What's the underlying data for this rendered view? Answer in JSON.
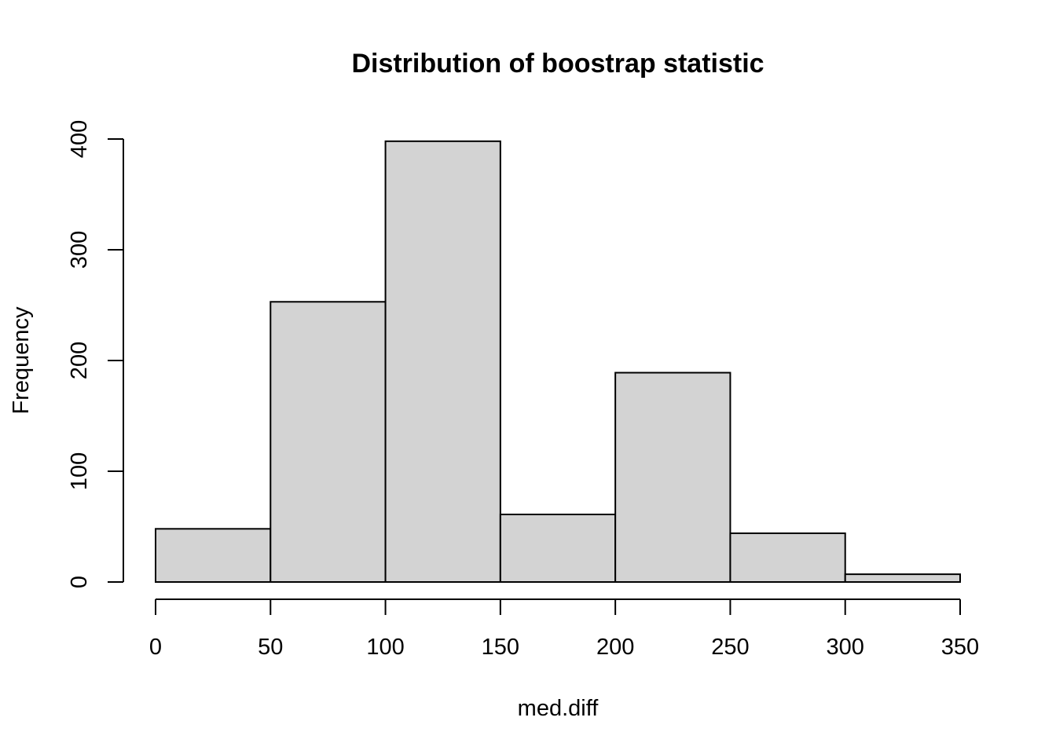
{
  "chart_data": {
    "type": "bar",
    "title": "Distribution of boostrap statistic",
    "xlabel": "med.diff",
    "ylabel": "Frequency",
    "bins": [
      {
        "from": 0,
        "to": 50,
        "count": 48
      },
      {
        "from": 50,
        "to": 100,
        "count": 253
      },
      {
        "from": 100,
        "to": 150,
        "count": 398
      },
      {
        "from": 150,
        "to": 200,
        "count": 61
      },
      {
        "from": 200,
        "to": 250,
        "count": 189
      },
      {
        "from": 250,
        "to": 300,
        "count": 44
      },
      {
        "from": 300,
        "to": 350,
        "count": 7
      }
    ],
    "xlim": [
      0,
      350
    ],
    "ylim": [
      0,
      400
    ],
    "xticks": [
      "0",
      "50",
      "100",
      "150",
      "200",
      "250",
      "300",
      "350"
    ],
    "yticks": [
      "0",
      "100",
      "200",
      "300",
      "400"
    ],
    "grid": false,
    "bar_fill": "#d3d3d3",
    "bar_stroke": "#000000"
  }
}
